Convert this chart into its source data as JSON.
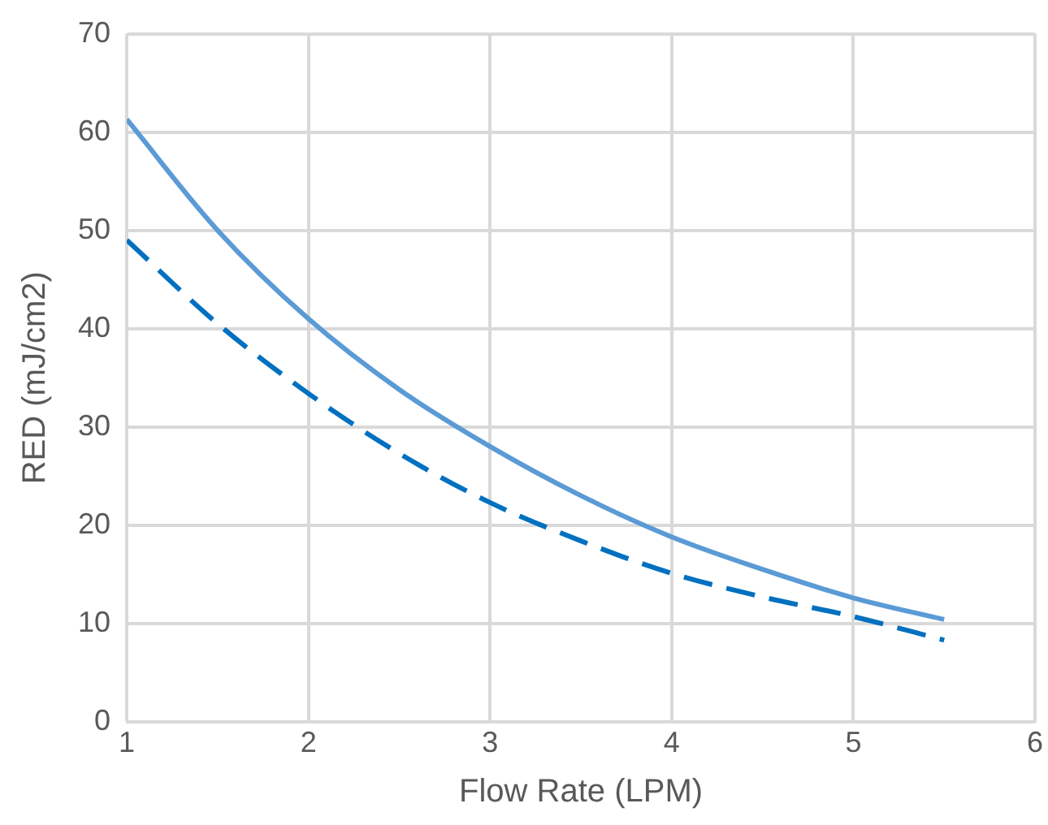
{
  "chart_data": {
    "type": "line",
    "xlabel": "Flow Rate (LPM)",
    "ylabel": "RED (mJ/cm2)",
    "x": [
      1,
      1.5,
      2,
      2.5,
      3,
      3.5,
      4,
      4.5,
      5,
      5.5
    ],
    "series": [
      {
        "color": "#0070c0",
        "line_style": "dashed",
        "values": [
          49,
          40.5,
          33.4,
          27.3,
          22.3,
          18.4,
          15.1,
          12.7,
          10.7,
          8.3
        ]
      },
      {
        "color": "#5b9bd5",
        "line_style": "solid",
        "values": [
          61.3,
          50,
          41,
          33.8,
          28,
          23,
          18.8,
          15.5,
          12.6,
          10.4
        ]
      }
    ],
    "xlim": [
      1,
      6
    ],
    "xticks": [
      1,
      2,
      3,
      4,
      5,
      6
    ],
    "ylim": [
      0,
      70
    ],
    "yticks": [
      0,
      10,
      20,
      30,
      40,
      50,
      60,
      70
    ],
    "grid": true,
    "marker": "none"
  }
}
